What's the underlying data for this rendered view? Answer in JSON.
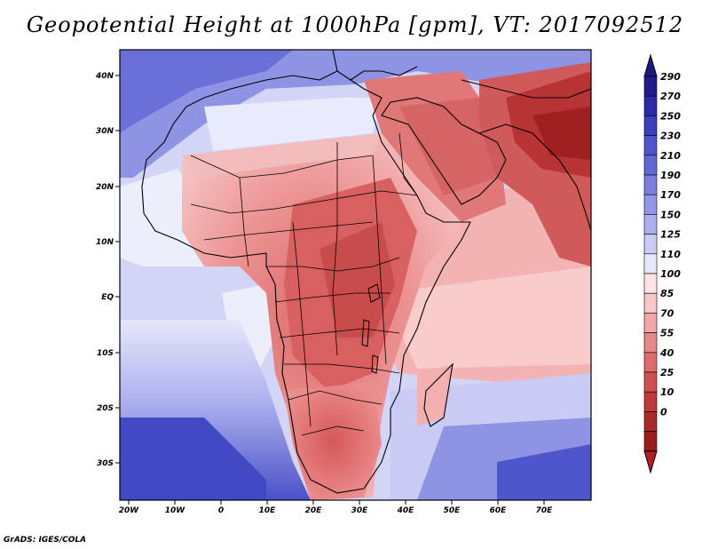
{
  "title": "Geopotential Height at 1000hPa [gpm], VT: 2017092512",
  "credit": "GrADS: IGES/COLA",
  "map": {
    "lat_labels": [
      "40N",
      "30N",
      "20N",
      "10N",
      "EQ",
      "10S",
      "20S",
      "30S"
    ],
    "lon_labels": [
      "20W",
      "10W",
      "0",
      "10E",
      "20E",
      "30E",
      "40E",
      "50E",
      "60E",
      "70E"
    ]
  },
  "colorbar": {
    "levels": [
      "290",
      "270",
      "250",
      "230",
      "210",
      "190",
      "170",
      "150",
      "125",
      "110",
      "100",
      "85",
      "70",
      "55",
      "40",
      "25",
      "10",
      "0"
    ],
    "colors": [
      "#1f1a8f",
      "#2b2aa8",
      "#3a3fbe",
      "#4d55cc",
      "#6268d6",
      "#7a7fdf",
      "#9296e6",
      "#adb0ee",
      "#c9cbf5",
      "#e6e7fb",
      "#fde4e4",
      "#f9c6c6",
      "#f2a6a6",
      "#e88787",
      "#dd6b6b",
      "#d05050",
      "#c03a3a",
      "#ad2a2a",
      "#9a1c1c"
    ],
    "tip_top": "#1a1a80",
    "tip_bottom": "#b31f1f"
  }
}
